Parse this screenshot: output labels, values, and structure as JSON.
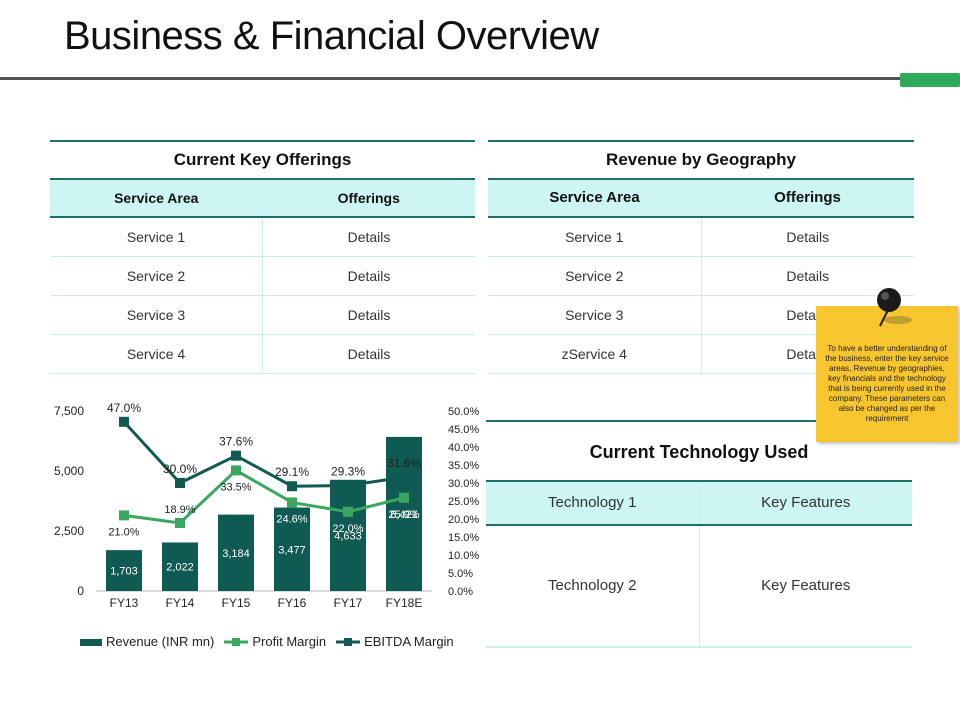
{
  "page": {
    "title": "Business & Financial Overview"
  },
  "colors": {
    "accent_green": "#2eaa58",
    "teal_dark": "#0f5a52",
    "header_bg": "#ccf5f3",
    "note_bg": "#f7c52e"
  },
  "key_offerings": {
    "caption": "Current Key Offerings",
    "headers": [
      "Service Area",
      "Offerings"
    ],
    "rows": [
      [
        "Service 1",
        "Details"
      ],
      [
        "Service 2",
        "Details"
      ],
      [
        "Service 3",
        "Details"
      ],
      [
        "Service 4",
        "Details"
      ]
    ]
  },
  "geography": {
    "caption": "Revenue by Geography",
    "headers": [
      "Service Area",
      "Offerings"
    ],
    "rows": [
      [
        "Service 1",
        "Details"
      ],
      [
        "Service 2",
        "Details"
      ],
      [
        "Service 3",
        "Details"
      ],
      [
        "zService 4",
        "Details"
      ]
    ]
  },
  "technology": {
    "caption": "Current Technology Used",
    "rows": [
      [
        "Technology 1",
        "Key Features"
      ],
      [
        "Technology 2",
        "Key Features"
      ]
    ]
  },
  "note": {
    "text": "To have a better understanding of the business, enter the key service areas, Revenue by geographies, key financials and the technology that is being currently used in the company. These parameters can also be changed as per the requirement",
    "icon": "pushpin-icon"
  },
  "chart_data": {
    "type": "bar",
    "categories": [
      "FY13",
      "FY14",
      "FY15",
      "FY16",
      "FY17",
      "FY18E"
    ],
    "series": [
      {
        "name": "Revenue (INR mn)",
        "kind": "bar",
        "axis": "left",
        "values": [
          1703,
          2022,
          3184,
          3477,
          4633,
          6421
        ],
        "labels": [
          "1,703",
          "2,022",
          "3,184",
          "3,477",
          "4,633",
          "6,421"
        ],
        "color": "#0f5a52"
      },
      {
        "name": "Profit Margin",
        "kind": "line",
        "axis": "right",
        "values": [
          21.0,
          18.9,
          33.5,
          24.6,
          22.0,
          25.9
        ],
        "labels": [
          "21.0%",
          "18.9%",
          "33.5%",
          "24.6%",
          "22.0%",
          "25.9%"
        ],
        "color": "#3aa760"
      },
      {
        "name": "EBITDA Margin",
        "kind": "line",
        "axis": "right",
        "values": [
          47.0,
          30.0,
          37.6,
          29.1,
          29.3,
          31.6
        ],
        "labels": [
          "47.0%",
          "30.0%",
          "37.6%",
          "29.1%",
          "29.3%",
          "31.6%"
        ],
        "color": "#0f5a52"
      }
    ],
    "ylim_left": [
      0,
      7500
    ],
    "yticks_left": [
      "0",
      "2,500",
      "5,000",
      "7,500"
    ],
    "ylim_right": [
      0,
      50
    ],
    "yticks_right": [
      "0.0%",
      "5.0%",
      "10.0%",
      "15.0%",
      "20.0%",
      "25.0%",
      "30.0%",
      "35.0%",
      "40.0%",
      "45.0%",
      "50.0%"
    ],
    "legend": "bottom",
    "grid": false
  }
}
